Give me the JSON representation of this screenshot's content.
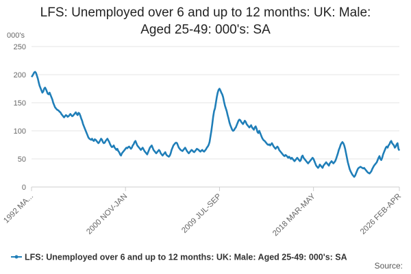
{
  "chart_data": {
    "type": "line",
    "title": "LFS: Unemployed over 6 and up to 12 months: UK: Male: Aged 25-49: 000's: SA",
    "y_label": "000's",
    "source": "Source:",
    "categories": [
      "1992 MA...",
      null,
      null,
      null,
      null,
      null,
      null,
      null,
      null,
      null,
      null,
      null,
      null,
      null,
      null,
      null,
      null,
      null,
      null,
      null,
      null,
      null,
      null,
      null,
      null,
      null,
      null,
      null,
      null,
      null,
      null,
      null,
      null,
      null,
      null,
      null,
      null,
      null,
      null,
      null,
      null,
      null,
      null,
      null,
      null,
      null,
      null,
      null,
      null,
      null,
      null,
      null,
      null,
      null,
      null,
      null,
      null,
      null,
      null,
      null,
      null,
      null,
      null,
      null,
      null,
      null,
      null,
      null,
      null,
      null,
      null,
      null,
      null,
      null,
      null,
      null,
      null,
      null,
      null,
      null,
      null,
      null,
      null,
      null,
      null,
      null,
      null,
      null,
      null,
      null,
      null,
      null,
      null,
      null,
      null,
      null,
      null,
      null,
      null,
      null,
      null,
      null,
      null,
      null,
      "2000 NOV-JAN",
      null,
      null,
      null,
      null,
      null,
      null,
      null,
      null,
      null,
      null,
      null,
      null,
      null,
      null,
      null,
      null,
      null,
      null,
      null,
      null,
      null,
      null,
      null,
      null,
      null,
      null,
      null,
      null,
      null,
      null,
      null,
      null,
      null,
      null,
      null,
      null,
      null,
      null,
      null,
      null,
      null,
      null,
      null,
      null,
      null,
      null,
      null,
      null,
      null,
      null,
      null,
      null,
      null,
      null,
      null,
      null,
      null,
      null,
      null,
      null,
      null,
      null,
      null,
      null,
      null,
      null,
      null,
      null,
      null,
      null,
      null,
      null,
      null,
      null,
      null,
      null,
      null,
      null,
      null,
      null,
      null,
      null,
      null,
      null,
      null,
      null,
      null,
      null,
      null,
      null,
      null,
      null,
      null,
      null,
      null,
      null,
      null,
      null,
      null,
      null,
      null,
      null,
      null,
      "2009 JUL-SEP",
      null,
      null,
      null,
      null,
      null,
      null,
      null,
      null,
      null,
      null,
      null,
      null,
      null,
      null,
      null,
      null,
      null,
      null,
      null,
      null,
      null,
      null,
      null,
      null,
      null,
      null,
      null,
      null,
      null,
      null,
      null,
      null,
      null,
      null,
      null,
      null,
      null,
      null,
      null,
      null,
      null,
      null,
      null,
      null,
      null,
      null,
      null,
      null,
      null,
      null,
      null,
      null,
      null,
      null,
      null,
      null,
      null,
      null,
      null,
      null,
      null,
      null,
      null,
      null,
      null,
      null,
      null,
      null,
      null,
      null,
      null,
      null,
      null,
      null,
      null,
      null,
      null,
      null,
      null,
      null,
      null,
      null,
      null,
      null,
      null,
      null,
      null,
      null,
      null,
      null,
      null,
      null,
      null,
      null,
      null,
      null,
      null,
      null,
      null,
      null,
      null,
      null,
      null,
      "2018 MAR-MAY",
      null,
      null,
      null,
      null,
      null,
      null,
      null,
      null,
      null,
      null,
      null,
      null,
      null,
      null,
      null,
      null,
      null,
      null,
      null,
      null,
      null,
      null,
      null,
      null,
      null,
      null,
      null,
      null,
      null,
      null,
      null,
      null,
      null,
      null,
      null,
      null,
      null,
      null,
      null,
      null,
      null,
      null,
      null,
      null,
      null,
      null,
      null,
      null,
      null,
      null,
      null,
      null,
      null,
      null,
      null,
      null,
      null,
      null,
      null,
      null,
      null,
      null,
      null,
      null,
      null,
      null,
      null,
      null,
      null,
      null,
      null,
      null,
      null,
      null,
      null,
      null,
      null,
      null,
      null,
      null,
      null,
      null,
      null,
      null,
      null,
      null,
      null,
      null,
      null,
      null,
      null,
      null,
      null,
      null,
      "2026 FEB-APR"
    ],
    "series": [
      {
        "name": "LFS: Unemployed over 6 and up to 12 months: UK: Male: Aged 25-49: 000's: SA",
        "color": "#1f7eb8",
        "values": [
          196,
          198,
          201,
          204,
          205,
          203,
          198,
          193,
          186,
          180,
          176,
          172,
          168,
          170,
          175,
          177,
          174,
          170,
          166,
          165,
          168,
          164,
          160,
          156,
          150,
          146,
          142,
          140,
          138,
          137,
          136,
          134,
          133,
          130,
          128,
          126,
          124,
          126,
          128,
          127,
          125,
          126,
          128,
          130,
          128,
          126,
          127,
          129,
          131,
          133,
          130,
          128,
          132,
          131,
          127,
          122,
          118,
          112,
          108,
          104,
          100,
          96,
          92,
          88,
          86,
          85,
          84,
          86,
          83,
          82,
          85,
          84,
          82,
          80,
          78,
          80,
          83,
          86,
          84,
          80,
          78,
          79,
          82,
          84,
          86,
          83,
          80,
          76,
          73,
          71,
          72,
          74,
          70,
          68,
          66,
          68,
          64,
          62,
          58,
          56,
          60,
          62,
          64,
          66,
          68,
          70,
          69,
          71,
          72,
          70,
          68,
          70,
          74,
          76,
          80,
          82,
          78,
          74,
          72,
          70,
          68,
          66,
          68,
          70,
          67,
          64,
          62,
          60,
          58,
          62,
          66,
          70,
          72,
          74,
          70,
          66,
          64,
          62,
          60,
          62,
          64,
          66,
          64,
          60,
          58,
          56,
          58,
          60,
          62,
          58,
          56,
          55,
          54,
          56,
          60,
          66,
          70,
          74,
          76,
          78,
          79,
          78,
          74,
          70,
          68,
          66,
          65,
          64,
          66,
          68,
          70,
          67,
          64,
          62,
          60,
          62,
          64,
          66,
          65,
          63,
          62,
          64,
          66,
          68,
          67,
          66,
          64,
          63,
          65,
          66,
          64,
          63,
          65,
          67,
          70,
          72,
          75,
          80,
          90,
          100,
          112,
          125,
          135,
          140,
          150,
          160,
          168,
          173,
          175,
          172,
          168,
          165,
          160,
          152,
          145,
          140,
          135,
          128,
          122,
          115,
          110,
          106,
          102,
          100,
          101,
          104,
          106,
          110,
          114,
          118,
          120,
          119,
          116,
          114,
          112,
          115,
          118,
          116,
          112,
          110,
          108,
          106,
          108,
          110,
          106,
          104,
          102,
          106,
          108,
          104,
          98,
          96,
          100,
          96,
          92,
          88,
          85,
          83,
          82,
          80,
          78,
          76,
          75,
          76,
          74,
          76,
          78,
          75,
          72,
          70,
          68,
          70,
          72,
          70,
          66,
          64,
          62,
          60,
          58,
          56,
          55,
          57,
          56,
          54,
          52,
          54,
          52,
          50,
          52,
          50,
          48,
          46,
          48,
          50,
          52,
          50,
          48,
          46,
          48,
          54,
          56,
          52,
          50,
          48,
          46,
          44,
          42,
          44,
          46,
          48,
          50,
          52,
          50,
          46,
          42,
          38,
          36,
          34,
          36,
          40,
          38,
          36,
          34,
          38,
          40,
          42,
          44,
          42,
          40,
          38,
          42,
          44,
          46,
          44,
          42,
          44,
          46,
          50,
          55,
          60,
          66,
          70,
          75,
          78,
          80,
          78,
          74,
          68,
          60,
          52,
          44,
          38,
          32,
          28,
          25,
          22,
          20,
          18,
          20,
          24,
          28,
          32,
          34,
          35,
          36,
          35,
          34,
          33,
          34,
          32,
          30,
          28,
          26,
          25,
          24,
          26,
          28,
          32,
          35,
          38,
          40,
          42,
          44,
          48,
          52,
          55,
          50,
          48,
          52,
          58,
          62,
          66,
          70,
          72,
          70,
          74,
          76,
          80,
          82,
          78,
          76,
          74,
          70,
          72,
          76,
          78,
          68,
          65
        ]
      }
    ],
    "ylim": [
      0,
      250
    ],
    "yticks": [
      0,
      50,
      100,
      150,
      200,
      250
    ],
    "grid": true
  }
}
